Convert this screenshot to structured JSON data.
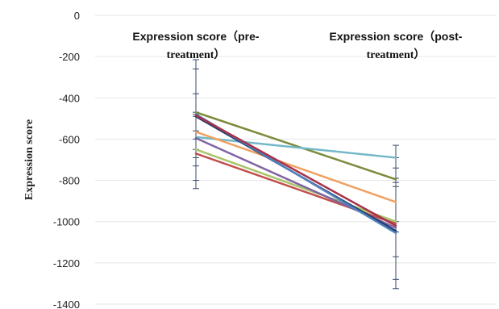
{
  "chart_data": {
    "type": "line",
    "ylabel": "Expression score",
    "ylim": [
      -1400,
      0
    ],
    "yticks": [
      0,
      -200,
      -400,
      -600,
      -800,
      -1000,
      -1200,
      -1400
    ],
    "categories": [
      {
        "line1": "Expression score（pre-",
        "line2": "treatment）"
      },
      {
        "line1": "Expression score（post-",
        "line2": "treatment）"
      }
    ],
    "grid": true,
    "series": [
      {
        "color": "#7b8b3c",
        "values": [
          -470,
          -795
        ]
      },
      {
        "color": "#72b8c8",
        "values": [
          -590,
          -690
        ]
      },
      {
        "color": "#f0a060",
        "values": [
          -565,
          -905
        ]
      },
      {
        "color": "#a8c46a",
        "values": [
          -650,
          -1000
        ]
      },
      {
        "color": "#c0504d",
        "values": [
          -670,
          -1010
        ]
      },
      {
        "color": "#8064a2",
        "values": [
          -595,
          -1030
        ]
      },
      {
        "color": "#1f3b6e",
        "values": [
          -490,
          -1045
        ]
      },
      {
        "color": "#4f81bd",
        "values": [
          -480,
          -1055
        ]
      },
      {
        "color": "#a8324a",
        "values": [
          -485,
          -1020
        ]
      }
    ],
    "error_bars": [
      {
        "category": 0,
        "low": -840,
        "high": -215,
        "ticks": [
          -215,
          -260,
          -380,
          -470,
          -480,
          -490,
          -560,
          -600,
          -650,
          -690,
          -730,
          -800,
          -840
        ]
      },
      {
        "category": 1,
        "low": -1325,
        "high": -630,
        "ticks": [
          -630,
          -690,
          -740,
          -790,
          -810,
          -830,
          -1000,
          -1050,
          -1170,
          -1280,
          -1325
        ]
      }
    ]
  }
}
